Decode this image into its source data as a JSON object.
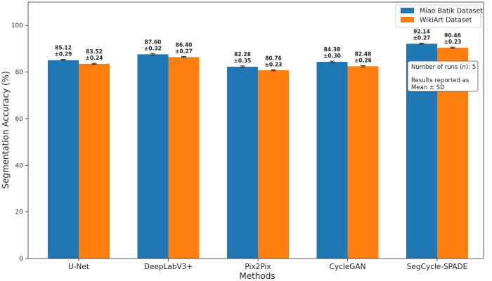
{
  "chart_data": {
    "type": "bar",
    "xlabel": "Methods",
    "ylabel": "Segmentation Accuracy (%)",
    "ylim": [
      0,
      110
    ],
    "yticks": [
      0,
      20,
      40,
      60,
      80,
      100
    ],
    "grid": false,
    "legend_position": "top-right",
    "categories": [
      "U-Net",
      "DeepLabV3+",
      "Pix2Pix",
      "CycleGAN",
      "SegCycle-SPADE"
    ],
    "series": [
      {
        "name": "Miao Batik Dataset",
        "color": "#1f77b4",
        "values": [
          85.12,
          87.6,
          82.28,
          84.38,
          92.14
        ],
        "errors": [
          0.29,
          0.32,
          0.35,
          0.3,
          0.27
        ],
        "value_labels": [
          "85.12",
          "87.60",
          "82.28",
          "84.38",
          "92.14"
        ],
        "error_labels": [
          "±0.29",
          "±0.32",
          "±0.35",
          "±0.30",
          "±0.27"
        ]
      },
      {
        "name": "WikiArt Dataset",
        "color": "#ff7f0e",
        "values": [
          83.52,
          86.4,
          80.76,
          82.48,
          90.46
        ],
        "errors": [
          0.24,
          0.27,
          0.23,
          0.26,
          0.23
        ],
        "value_labels": [
          "83.52",
          "86.40",
          "80.76",
          "82.48",
          "90.46"
        ],
        "error_labels": [
          "±0.24",
          "±0.27",
          "±0.23",
          "±0.26",
          "±0.23"
        ]
      }
    ],
    "annotation_lines": [
      "Number of runs (n): 5",
      "",
      "Results reported as",
      "Mean ± SD"
    ]
  }
}
